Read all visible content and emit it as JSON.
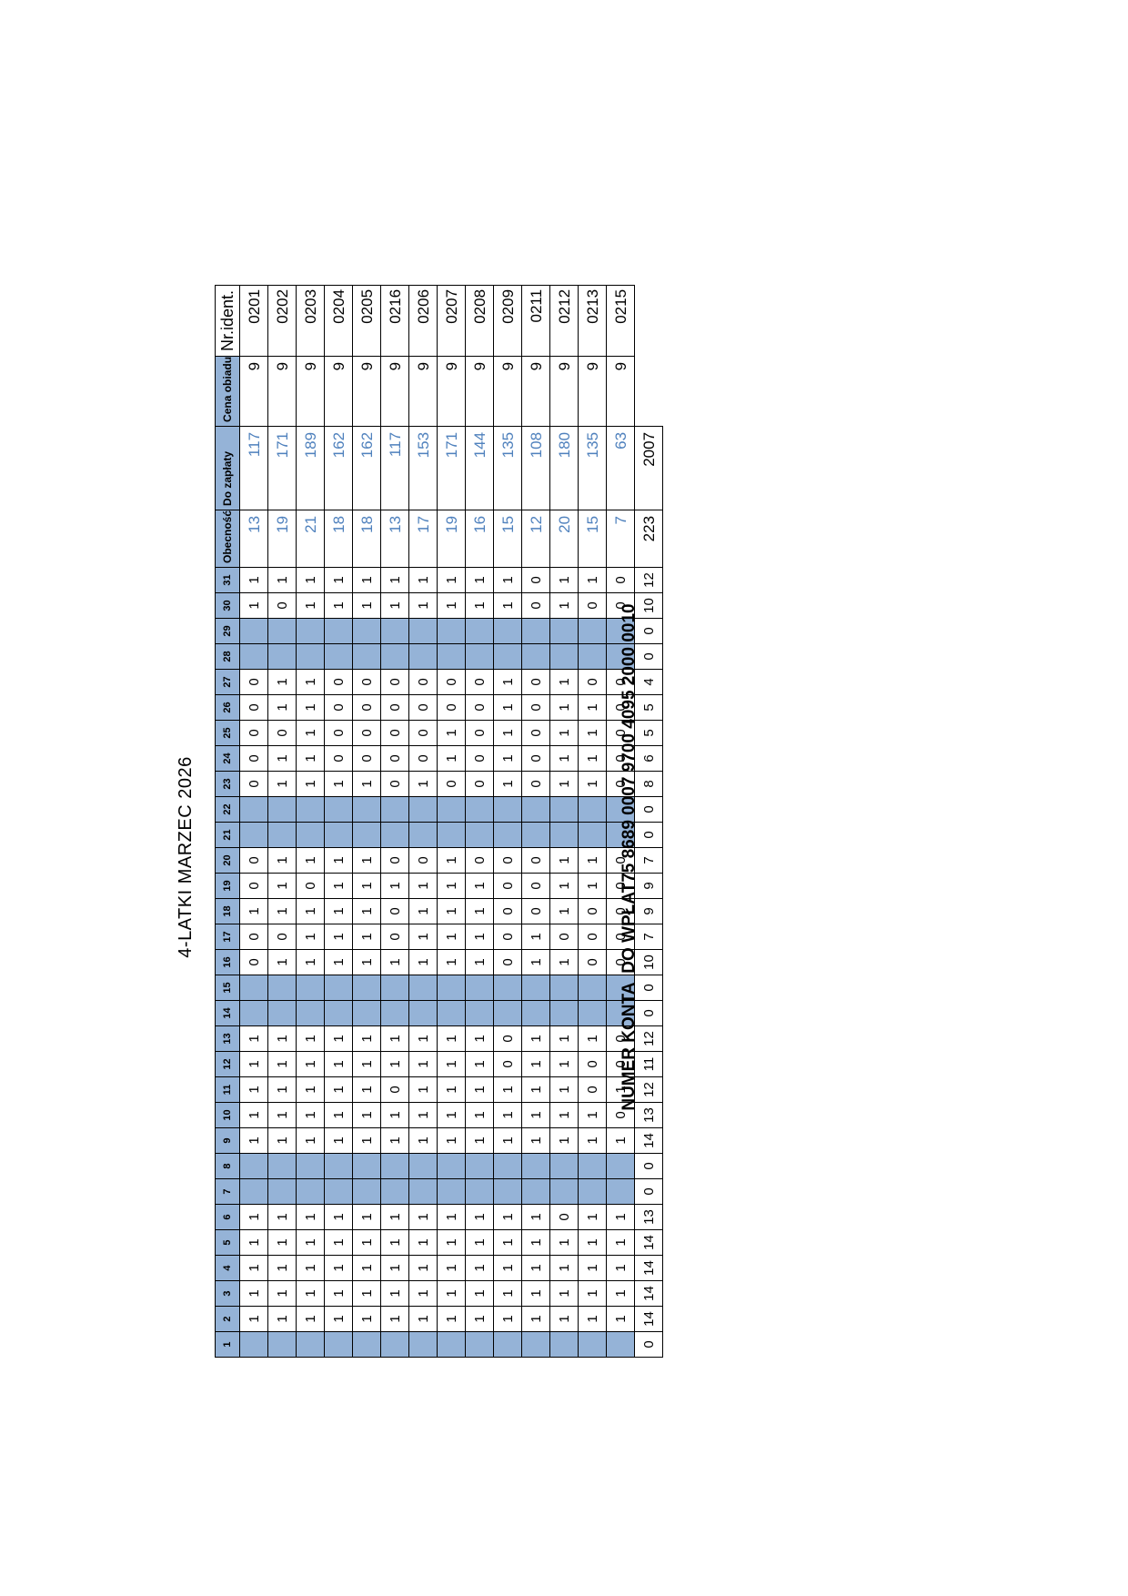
{
  "title": "4-LATKI MARZEC 2026",
  "columns": {
    "days": [
      "1",
      "2",
      "3",
      "4",
      "5",
      "6",
      "7",
      "8",
      "9",
      "10",
      "11",
      "12",
      "13",
      "14",
      "15",
      "16",
      "17",
      "18",
      "19",
      "20",
      "21",
      "22",
      "23",
      "24",
      "25",
      "26",
      "27",
      "28",
      "29",
      "30",
      "31"
    ],
    "obecnosc": "Obecność",
    "do_zaplaty": "Do zapłaty",
    "cena_obiadu": "Cena obiadu",
    "nr_ident": "Nr.ident."
  },
  "off_days": [
    1,
    7,
    8,
    14,
    15,
    21,
    22,
    28,
    29
  ],
  "rows": [
    {
      "days": [
        "",
        "1",
        "1",
        "1",
        "1",
        "1",
        "",
        "",
        "1",
        "1",
        "1",
        "1",
        "1",
        "",
        "",
        "0",
        "0",
        "1",
        "0",
        "0",
        "",
        "",
        "0",
        "0",
        "0",
        "0",
        "0",
        "",
        "",
        "1",
        "1"
      ],
      "obecnosc": "13",
      "do_zaplaty": "117",
      "cena": "9",
      "id": "0201"
    },
    {
      "days": [
        "",
        "1",
        "1",
        "1",
        "1",
        "1",
        "",
        "",
        "1",
        "1",
        "1",
        "1",
        "1",
        "",
        "",
        "1",
        "0",
        "1",
        "1",
        "1",
        "",
        "",
        "1",
        "1",
        "0",
        "1",
        "1",
        "",
        "",
        "0",
        "1"
      ],
      "obecnosc": "19",
      "do_zaplaty": "171",
      "cena": "9",
      "id": "0202"
    },
    {
      "days": [
        "",
        "1",
        "1",
        "1",
        "1",
        "1",
        "",
        "",
        "1",
        "1",
        "1",
        "1",
        "1",
        "",
        "",
        "1",
        "1",
        "1",
        "0",
        "1",
        "",
        "",
        "1",
        "1",
        "1",
        "1",
        "1",
        "",
        "",
        "1",
        "1"
      ],
      "obecnosc": "21",
      "do_zaplaty": "189",
      "cena": "9",
      "id": "0203"
    },
    {
      "days": [
        "",
        "1",
        "1",
        "1",
        "1",
        "1",
        "",
        "",
        "1",
        "1",
        "1",
        "1",
        "1",
        "",
        "",
        "1",
        "1",
        "1",
        "1",
        "1",
        "",
        "",
        "1",
        "0",
        "0",
        "0",
        "0",
        "",
        "",
        "1",
        "1"
      ],
      "obecnosc": "18",
      "do_zaplaty": "162",
      "cena": "9",
      "id": "0204"
    },
    {
      "days": [
        "",
        "1",
        "1",
        "1",
        "1",
        "1",
        "",
        "",
        "1",
        "1",
        "1",
        "1",
        "1",
        "",
        "",
        "1",
        "1",
        "1",
        "1",
        "1",
        "",
        "",
        "1",
        "0",
        "0",
        "0",
        "0",
        "",
        "",
        "1",
        "1"
      ],
      "obecnosc": "18",
      "do_zaplaty": "162",
      "cena": "9",
      "id": "0205"
    },
    {
      "days": [
        "",
        "1",
        "1",
        "1",
        "1",
        "1",
        "",
        "",
        "1",
        "1",
        "0",
        "1",
        "1",
        "",
        "",
        "1",
        "0",
        "0",
        "1",
        "0",
        "",
        "",
        "0",
        "0",
        "0",
        "0",
        "0",
        "",
        "",
        "1",
        "1"
      ],
      "obecnosc": "13",
      "do_zaplaty": "117",
      "cena": "9",
      "id": "0216"
    },
    {
      "days": [
        "",
        "1",
        "1",
        "1",
        "1",
        "1",
        "",
        "",
        "1",
        "1",
        "1",
        "1",
        "1",
        "",
        "",
        "1",
        "1",
        "1",
        "1",
        "0",
        "",
        "",
        "1",
        "0",
        "0",
        "0",
        "0",
        "",
        "",
        "1",
        "1"
      ],
      "obecnosc": "17",
      "do_zaplaty": "153",
      "cena": "9",
      "id": "0206"
    },
    {
      "days": [
        "",
        "1",
        "1",
        "1",
        "1",
        "1",
        "",
        "",
        "1",
        "1",
        "1",
        "1",
        "1",
        "",
        "",
        "1",
        "1",
        "1",
        "1",
        "1",
        "",
        "",
        "0",
        "1",
        "1",
        "0",
        "0",
        "",
        "",
        "1",
        "1"
      ],
      "obecnosc": "19",
      "do_zaplaty": "171",
      "cena": "9",
      "id": "0207"
    },
    {
      "days": [
        "",
        "1",
        "1",
        "1",
        "1",
        "1",
        "",
        "",
        "1",
        "1",
        "1",
        "1",
        "1",
        "",
        "",
        "1",
        "1",
        "1",
        "1",
        "0",
        "",
        "",
        "0",
        "0",
        "0",
        "0",
        "0",
        "",
        "",
        "1",
        "1"
      ],
      "obecnosc": "16",
      "do_zaplaty": "144",
      "cena": "9",
      "id": "0208"
    },
    {
      "days": [
        "",
        "1",
        "1",
        "1",
        "1",
        "1",
        "",
        "",
        "1",
        "1",
        "1",
        "0",
        "0",
        "",
        "",
        "0",
        "0",
        "0",
        "0",
        "0",
        "",
        "",
        "1",
        "1",
        "1",
        "1",
        "1",
        "",
        "",
        "1",
        "1"
      ],
      "obecnosc": "15",
      "do_zaplaty": "135",
      "cena": "9",
      "id": "0209"
    },
    {
      "days": [
        "",
        "1",
        "1",
        "1",
        "1",
        "1",
        "",
        "",
        "1",
        "1",
        "1",
        "1",
        "1",
        "",
        "",
        "1",
        "1",
        "0",
        "0",
        "0",
        "",
        "",
        "0",
        "0",
        "0",
        "0",
        "0",
        "",
        "",
        "0",
        "0"
      ],
      "obecnosc": "12",
      "do_zaplaty": "108",
      "cena": "9",
      "id": "0211"
    },
    {
      "days": [
        "",
        "1",
        "1",
        "1",
        "1",
        "0",
        "",
        "",
        "1",
        "1",
        "1",
        "1",
        "1",
        "",
        "",
        "1",
        "0",
        "1",
        "1",
        "1",
        "",
        "",
        "1",
        "1",
        "1",
        "1",
        "1",
        "",
        "",
        "1",
        "1"
      ],
      "obecnosc": "20",
      "do_zaplaty": "180",
      "cena": "9",
      "id": "0212"
    },
    {
      "days": [
        "",
        "1",
        "1",
        "1",
        "1",
        "1",
        "",
        "",
        "1",
        "1",
        "0",
        "0",
        "1",
        "",
        "",
        "0",
        "0",
        "0",
        "1",
        "1",
        "",
        "",
        "1",
        "1",
        "1",
        "1",
        "0",
        "",
        "",
        "0",
        "1"
      ],
      "obecnosc": "15",
      "do_zaplaty": "135",
      "cena": "9",
      "id": "0213"
    },
    {
      "days": [
        "",
        "1",
        "1",
        "1",
        "1",
        "1",
        "",
        "",
        "1",
        "0",
        "1",
        "0",
        "0",
        "",
        "",
        "0",
        "0",
        "0",
        "0",
        "0",
        "",
        "",
        "0",
        "0",
        "0",
        "0",
        "0",
        "",
        "",
        "0",
        "0"
      ],
      "obecnosc": "7",
      "do_zaplaty": "63",
      "cena": "9",
      "id": "0215"
    }
  ],
  "totals": {
    "days": [
      "0",
      "14",
      "14",
      "14",
      "14",
      "13",
      "0",
      "0",
      "14",
      "13",
      "12",
      "11",
      "12",
      "0",
      "0",
      "10",
      "7",
      "9",
      "9",
      "7",
      "0",
      "0",
      "8",
      "6",
      "5",
      "5",
      "4",
      "0",
      "0",
      "10",
      "12"
    ],
    "obecnosc": "223",
    "do_zaplaty": "2007"
  },
  "account": {
    "label": "NUMER KONTA  DO WPŁAT",
    "number": "75 8689 0007 9700 4095 2000 0010"
  }
}
